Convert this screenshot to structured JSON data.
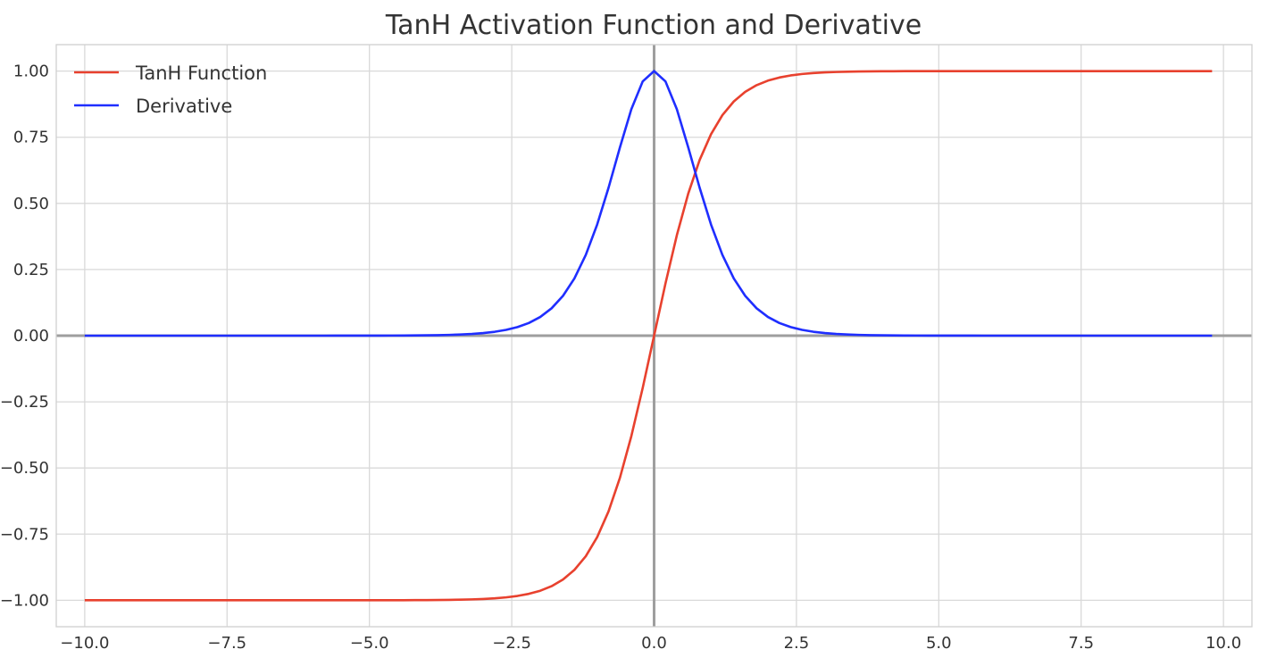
{
  "chart_data": {
    "type": "line",
    "title": "TanH Activation Function and Derivative",
    "xlabel": "",
    "ylabel": "",
    "xlim": [
      -10.5,
      10.5
    ],
    "ylim": [
      -1.1,
      1.1
    ],
    "x_ticks": [
      -10.0,
      -7.5,
      -5.0,
      -2.5,
      0.0,
      2.5,
      5.0,
      7.5,
      10.0
    ],
    "x_tick_labels": [
      "−10.0",
      "−7.5",
      "−5.0",
      "−2.5",
      "0.0",
      "2.5",
      "5.0",
      "7.5",
      "10.0"
    ],
    "y_ticks": [
      1.0,
      0.75,
      0.5,
      0.25,
      0.0,
      -0.25,
      -0.5,
      -0.75,
      -1.0
    ],
    "y_tick_labels": [
      "1.00",
      "0.75",
      "0.50",
      "0.25",
      "0.00",
      "−0.25",
      "−0.50",
      "−0.75",
      "−1.00"
    ],
    "grid": true,
    "legend_position": "top-left",
    "x_range": {
      "start": -10.0,
      "end": 9.8,
      "step": 0.2
    },
    "series": [
      {
        "name": "TanH Function",
        "function": "tanh(x)",
        "color": "#e8412e"
      },
      {
        "name": "Derivative",
        "function": "1 - tanh(x)^2",
        "color": "#1f2eff"
      }
    ]
  }
}
